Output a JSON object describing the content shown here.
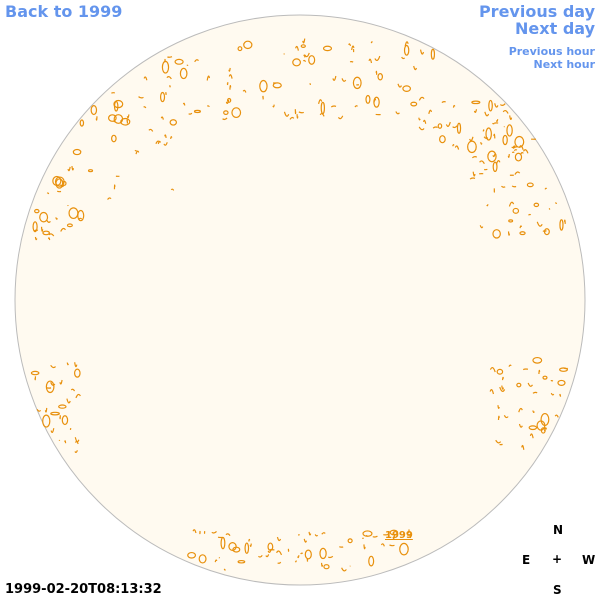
{
  "nav": {
    "back_label": "Back to 1999",
    "prev_day_label": "Previous day",
    "next_day_label": "Next day",
    "prev_hour_label": "Previous hour",
    "next_hour_label": "Next hour"
  },
  "timestamp": "1999-02-20T08:13:32",
  "compass": {
    "north": "N",
    "east": "E",
    "center": "+",
    "west": "W",
    "south": "S"
  },
  "disk": {
    "fill_color": "#fffaf0",
    "border_color": "#bbbbbb",
    "contour_color": "#e8900c",
    "year_label": "1999"
  }
}
